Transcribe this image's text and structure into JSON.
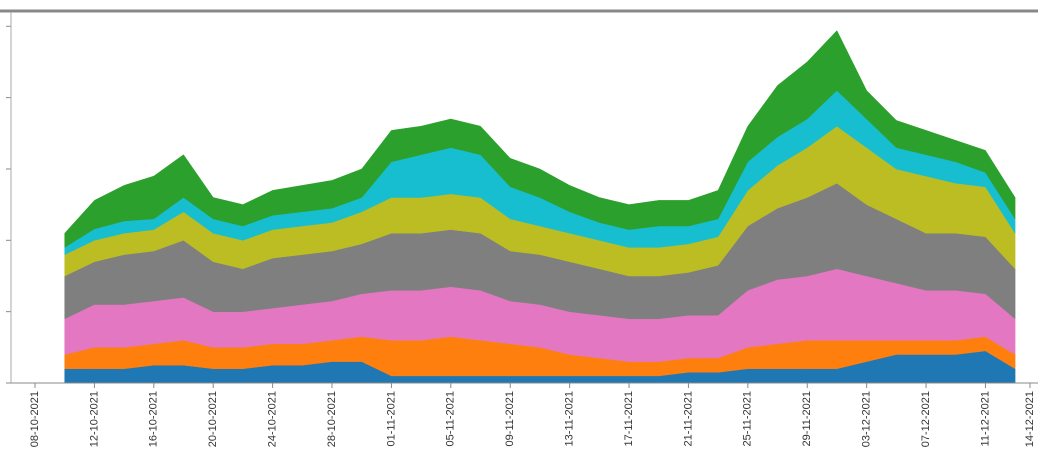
{
  "chart_data": {
    "type": "stacked-area",
    "x": [
      "10-10-2021",
      "12-10-2021",
      "14-10-2021",
      "16-10-2021",
      "18-10-2021",
      "20-10-2021",
      "22-10-2021",
      "24-10-2021",
      "26-10-2021",
      "28-10-2021",
      "30-10-2021",
      "01-11-2021",
      "03-11-2021",
      "05-11-2021",
      "07-11-2021",
      "09-11-2021",
      "11-11-2021",
      "13-11-2021",
      "15-11-2021",
      "17-11-2021",
      "19-11-2021",
      "21-11-2021",
      "23-11-2021",
      "25-11-2021",
      "27-11-2021",
      "29-11-2021",
      "01-12-2021",
      "03-12-2021",
      "05-12-2021",
      "07-12-2021",
      "09-12-2021",
      "11-12-2021",
      "13-12-2021"
    ],
    "xlim": [
      "08-10-2021",
      "14-12-2021"
    ],
    "xticks": [
      "08-10-2021",
      "12-10-2021",
      "16-10-2021",
      "20-10-2021",
      "24-10-2021",
      "28-10-2021",
      "01-11-2021",
      "05-11-2021",
      "09-11-2021",
      "13-11-2021",
      "17-11-2021",
      "21-11-2021",
      "25-11-2021",
      "29-11-2021",
      "03-12-2021",
      "07-12-2021",
      "11-12-2021",
      "14-12-2021"
    ],
    "ylim": [
      0,
      5.2
    ],
    "yticks": [
      0,
      1,
      2,
      3,
      4,
      5
    ],
    "series": [
      {
        "color": "#1f77b4",
        "values": [
          0.2,
          0.2,
          0.2,
          0.25,
          0.25,
          0.2,
          0.2,
          0.25,
          0.25,
          0.3,
          0.3,
          0.1,
          0.1,
          0.1,
          0.1,
          0.1,
          0.1,
          0.1,
          0.1,
          0.1,
          0.1,
          0.15,
          0.15,
          0.2,
          0.2,
          0.2,
          0.2,
          0.3,
          0.4,
          0.4,
          0.4,
          0.45,
          0.2
        ]
      },
      {
        "color": "#ff7f0e",
        "values": [
          0.2,
          0.3,
          0.3,
          0.3,
          0.35,
          0.3,
          0.3,
          0.3,
          0.3,
          0.3,
          0.35,
          0.5,
          0.5,
          0.55,
          0.5,
          0.45,
          0.4,
          0.3,
          0.25,
          0.2,
          0.2,
          0.2,
          0.2,
          0.3,
          0.35,
          0.4,
          0.4,
          0.3,
          0.2,
          0.2,
          0.2,
          0.2,
          0.2
        ]
      },
      {
        "color": "#e377c2",
        "values": [
          0.5,
          0.6,
          0.6,
          0.6,
          0.6,
          0.5,
          0.5,
          0.5,
          0.55,
          0.55,
          0.6,
          0.7,
          0.7,
          0.7,
          0.7,
          0.6,
          0.6,
          0.6,
          0.6,
          0.6,
          0.6,
          0.6,
          0.6,
          0.8,
          0.9,
          0.9,
          1,
          0.9,
          0.8,
          0.7,
          0.7,
          0.6,
          0.5
        ]
      },
      {
        "color": "#7f7f7f",
        "values": [
          0.6,
          0.6,
          0.7,
          0.7,
          0.8,
          0.7,
          0.6,
          0.7,
          0.7,
          0.7,
          0.7,
          0.8,
          0.8,
          0.8,
          0.8,
          0.7,
          0.7,
          0.7,
          0.65,
          0.6,
          0.6,
          0.6,
          0.7,
          0.9,
          1,
          1.1,
          1.2,
          1,
          0.9,
          0.8,
          0.8,
          0.8,
          0.7
        ]
      },
      {
        "color": "#bcbd22",
        "values": [
          0.3,
          0.3,
          0.3,
          0.3,
          0.4,
          0.4,
          0.4,
          0.4,
          0.4,
          0.4,
          0.45,
          0.5,
          0.5,
          0.5,
          0.5,
          0.45,
          0.4,
          0.4,
          0.4,
          0.4,
          0.4,
          0.4,
          0.4,
          0.5,
          0.6,
          0.7,
          0.8,
          0.8,
          0.7,
          0.8,
          0.7,
          0.7,
          0.5
        ]
      },
      {
        "color": "#17becf",
        "values": [
          0.1,
          0.16,
          0.17,
          0.15,
          0.2,
          0.2,
          0.2,
          0.2,
          0.2,
          0.2,
          0.2,
          0.5,
          0.6,
          0.65,
          0.6,
          0.45,
          0.4,
          0.3,
          0.25,
          0.25,
          0.3,
          0.25,
          0.25,
          0.4,
          0.4,
          0.4,
          0.5,
          0.4,
          0.3,
          0.3,
          0.3,
          0.2,
          0.2
        ]
      },
      {
        "color": "#2ca02c",
        "values": [
          0.2,
          0.4,
          0.5,
          0.6,
          0.6,
          0.3,
          0.3,
          0.35,
          0.37,
          0.39,
          0.4,
          0.44,
          0.4,
          0.4,
          0.4,
          0.4,
          0.4,
          0.37,
          0.35,
          0.35,
          0.36,
          0.36,
          0.4,
          0.5,
          0.72,
          0.8,
          0.84,
          0.4,
          0.38,
          0.34,
          0.3,
          0.31,
          0.3
        ]
      }
    ]
  }
}
